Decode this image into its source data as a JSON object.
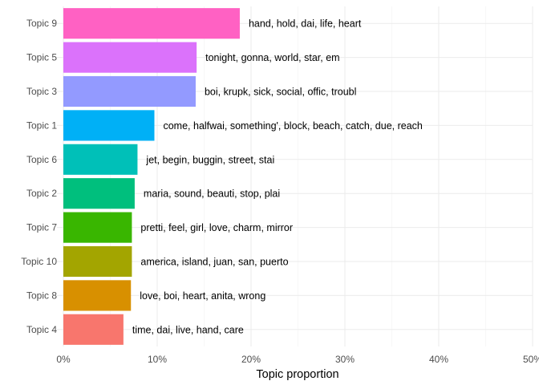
{
  "chart_data": {
    "type": "bar",
    "orientation": "horizontal",
    "xlabel": "Topic proportion",
    "ylabel": "",
    "xlim": [
      0,
      0.5
    ],
    "x_ticks": [
      0,
      0.1,
      0.2,
      0.3,
      0.4,
      0.5
    ],
    "x_tick_labels": [
      "0%",
      "10%",
      "20%",
      "30%",
      "40%",
      "50%"
    ],
    "grid": true,
    "categories": [
      "Topic 9",
      "Topic 5",
      "Topic 3",
      "Topic 1",
      "Topic 6",
      "Topic 2",
      "Topic 7",
      "Topic 10",
      "Topic 8",
      "Topic 4"
    ],
    "values": [
      0.188,
      0.142,
      0.141,
      0.097,
      0.079,
      0.076,
      0.073,
      0.073,
      0.072,
      0.064
    ],
    "terms": [
      "hand, hold, dai, life, heart",
      "tonight, gonna, world, star, em",
      "boi, krupk, sick, social, offic, troubl",
      "come, halfwai, something', block, beach, catch, due, reach",
      "jet, begin, buggin, street, stai",
      "maria, sound, beauti, stop, plai",
      "pretti, feel, girl, love, charm, mirror",
      "america, island, juan, san, puerto",
      "love, boi, heart, anita, wrong",
      "time, dai, live, hand, care"
    ],
    "colors": [
      "#FF61C3",
      "#DB72FB",
      "#939AFF",
      "#00B0F6",
      "#00C0B8",
      "#00BF7D",
      "#39B600",
      "#A3A500",
      "#D89000",
      "#F8766D"
    ]
  }
}
